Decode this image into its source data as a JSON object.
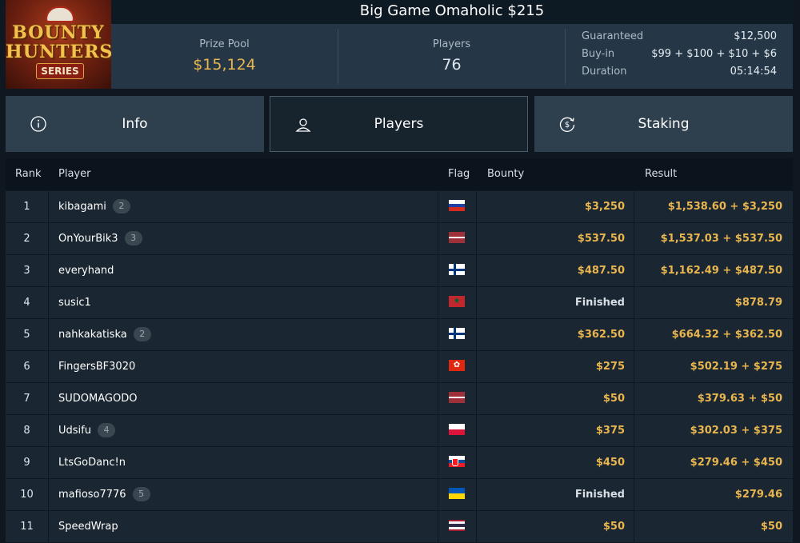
{
  "logo": {
    "line1": "BOUNTY",
    "line2": "HUNTERS",
    "line3": "SERIES"
  },
  "title": "Big Game Omaholic $215",
  "stats": {
    "prize_pool_label": "Prize Pool",
    "prize_pool_value": "$15,124",
    "players_label": "Players",
    "players_value": "76",
    "details": [
      {
        "label": "Guaranteed",
        "value": "$12,500"
      },
      {
        "label": "Buy-in",
        "value": "$99 + $100 + $10 + $6"
      },
      {
        "label": "Duration",
        "value": "05:14:54"
      }
    ]
  },
  "tabs": [
    {
      "label": "Info",
      "icon": "info-icon"
    },
    {
      "label": "Players",
      "icon": "user-icon"
    },
    {
      "label": "Staking",
      "icon": "dollar-cycle-icon"
    }
  ],
  "table": {
    "headers": {
      "rank": "Rank",
      "player": "Player",
      "flag": "Flag",
      "bounty": "Bounty",
      "result": "Result"
    },
    "rows": [
      {
        "rank": "1",
        "player": "kibagami",
        "badge": "2",
        "flag": "russia",
        "bounty": "$3,250",
        "result": "$1,538.60 + $3,250"
      },
      {
        "rank": "2",
        "player": "OnYourBik3",
        "badge": "3",
        "flag": "latvia",
        "bounty": "$537.50",
        "result": "$1,537.03 + $537.50"
      },
      {
        "rank": "3",
        "player": "everyhand",
        "badge": "",
        "flag": "finland",
        "bounty": "$487.50",
        "result": "$1,162.49 + $487.50"
      },
      {
        "rank": "4",
        "player": "susic1",
        "badge": "",
        "flag": "morocco",
        "bounty": "Finished",
        "result": "$878.79"
      },
      {
        "rank": "5",
        "player": "nahkakatiska",
        "badge": "2",
        "flag": "finland",
        "bounty": "$362.50",
        "result": "$664.32 + $362.50"
      },
      {
        "rank": "6",
        "player": "FingersBF3020",
        "badge": "",
        "flag": "hongkong",
        "bounty": "$275",
        "result": "$502.19 + $275"
      },
      {
        "rank": "7",
        "player": "SUDOMAGODO",
        "badge": "",
        "flag": "latvia",
        "bounty": "$50",
        "result": "$379.63 + $50"
      },
      {
        "rank": "8",
        "player": "Udsifu",
        "badge": "4",
        "flag": "poland",
        "bounty": "$375",
        "result": "$302.03 + $375"
      },
      {
        "rank": "9",
        "player": "LtsGoDanc!n",
        "badge": "",
        "flag": "slovakia",
        "bounty": "$450",
        "result": "$279.46 + $450"
      },
      {
        "rank": "10",
        "player": "mafioso7776",
        "badge": "5",
        "flag": "ukraine",
        "bounty": "Finished",
        "result": "$279.46"
      },
      {
        "rank": "11",
        "player": "SpeedWrap",
        "badge": "",
        "flag": "thailand",
        "bounty": "$50",
        "result": "$50"
      }
    ]
  },
  "colors": {
    "accent_gold": "#e8b54f",
    "bg": "#0f1820",
    "panel": "#253746",
    "row": "#1a2631"
  }
}
